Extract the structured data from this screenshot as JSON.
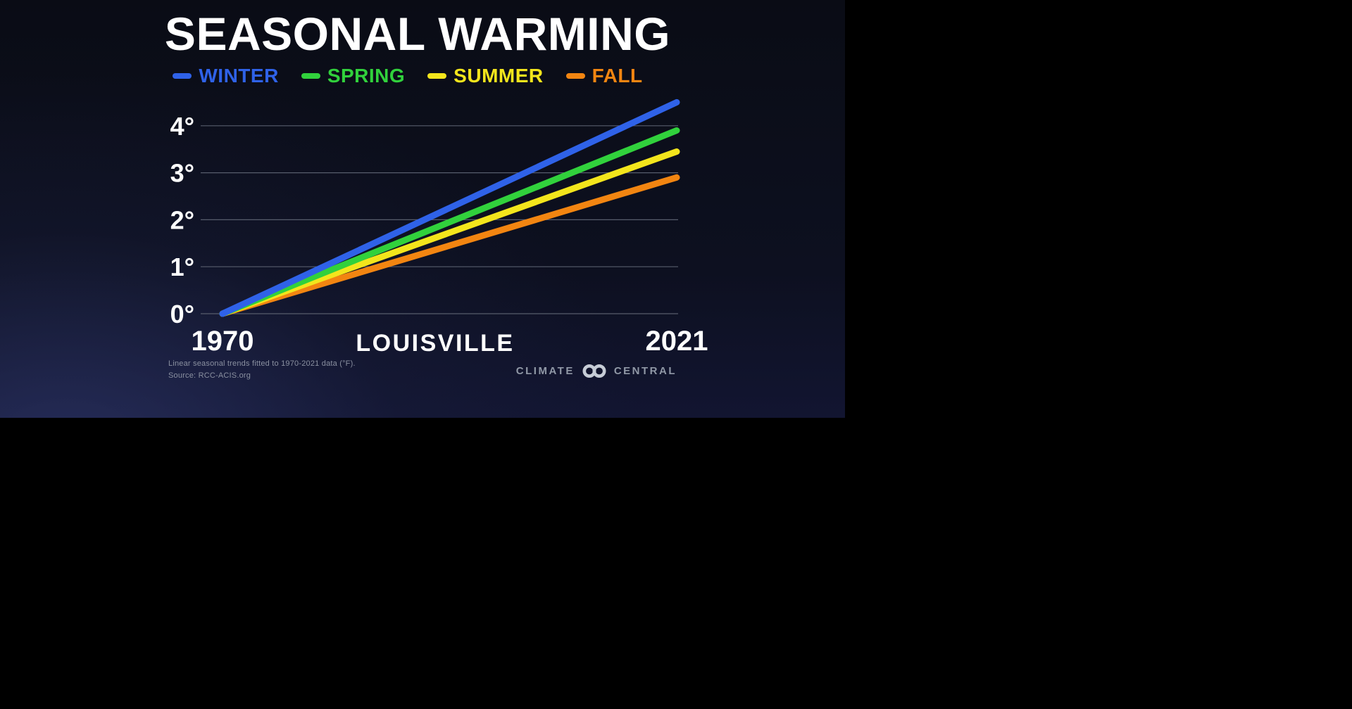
{
  "page": {
    "background": "#000000"
  },
  "panel": {
    "background_top": "#0a0c15",
    "background_glow": "#36407a"
  },
  "chart_data": {
    "type": "line",
    "title": "SEASONAL WARMING",
    "city": "LOUISVILLE",
    "x": [
      1970,
      2021
    ],
    "x_start": "1970",
    "x_end": "2021",
    "xlabel": "",
    "ylabel": "",
    "ylim": [
      0,
      4.7
    ],
    "yticks": [
      0,
      1,
      2,
      3,
      4
    ],
    "ytick_suffix": "°",
    "units": "°F",
    "grid": true,
    "legend_position": "top",
    "series": [
      {
        "name": "WINTER",
        "color": "#2f62e8",
        "values": [
          0,
          4.5
        ]
      },
      {
        "name": "SPRING",
        "color": "#31d13c",
        "values": [
          0,
          3.9
        ]
      },
      {
        "name": "SUMMER",
        "color": "#f3e51c",
        "values": [
          0,
          3.45
        ]
      },
      {
        "name": "FALL",
        "color": "#f28511",
        "values": [
          0,
          2.9
        ]
      }
    ],
    "footnote_line1": "Linear seasonal trends fitted to 1970-2021 data (°F).",
    "footnote_line2": "Source: RCC-ACIS.org"
  },
  "logo": {
    "left": "CLIMATE",
    "right": "CENTRAL"
  }
}
